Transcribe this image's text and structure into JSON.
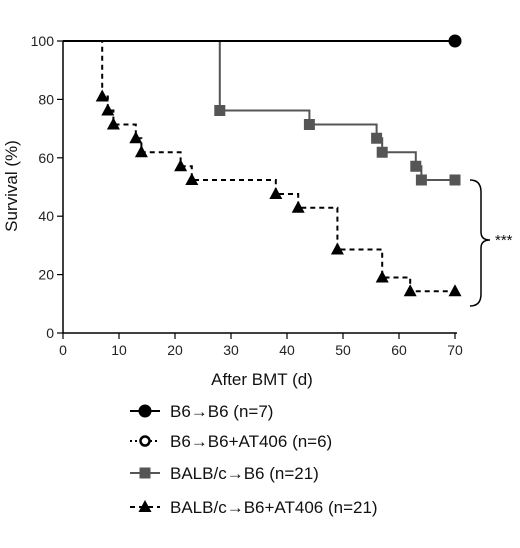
{
  "chart_data": {
    "type": "line",
    "subtype": "kaplan-meier-step",
    "xlabel": "After BMT (d)",
    "ylabel": "Survival (%)",
    "xlim": [
      0,
      70
    ],
    "ylim": [
      0,
      100
    ],
    "xticks": [
      "0",
      "10",
      "20",
      "30",
      "40",
      "50",
      "60",
      "70"
    ],
    "yticks": [
      "0",
      "20",
      "40",
      "60",
      "80",
      "100"
    ],
    "grid": false,
    "legend_position": "bottom",
    "significance": "***",
    "series": [
      {
        "name": "B6→B6 (n=7)",
        "marker": "filled-circle",
        "line": "solid",
        "color": "#000000",
        "steps": [
          [
            0,
            100
          ],
          [
            70,
            100
          ]
        ],
        "markers": [
          [
            70,
            100
          ]
        ]
      },
      {
        "name": "B6→B6+AT406 (n=6)",
        "marker": "open-circle",
        "line": "dotted",
        "color": "#000000",
        "steps": [
          [
            0,
            100
          ],
          [
            70,
            100
          ]
        ],
        "markers": []
      },
      {
        "name": "BALB/c→B6 (n=21)",
        "marker": "square",
        "line": "solid",
        "color": "#555555",
        "steps": [
          [
            0,
            100
          ],
          [
            28,
            76.2
          ],
          [
            44,
            71.4
          ],
          [
            56,
            66.7
          ],
          [
            57,
            61.9
          ],
          [
            63,
            57.1
          ],
          [
            64,
            52.4
          ],
          [
            70,
            52.4
          ]
        ],
        "markers": [
          [
            28,
            76.2
          ],
          [
            44,
            71.4
          ],
          [
            56,
            66.7
          ],
          [
            57,
            61.9
          ],
          [
            63,
            57.1
          ],
          [
            64,
            52.4
          ],
          [
            70,
            52.4
          ]
        ]
      },
      {
        "name": "BALB/c→B6+AT406 (n=21)",
        "marker": "triangle",
        "line": "dashed",
        "color": "#000000",
        "steps": [
          [
            0,
            100
          ],
          [
            7,
            81
          ],
          [
            8,
            76.2
          ],
          [
            9,
            71.4
          ],
          [
            13,
            66.7
          ],
          [
            14,
            61.9
          ],
          [
            21,
            57.1
          ],
          [
            23,
            52.4
          ],
          [
            38,
            47.6
          ],
          [
            42,
            42.9
          ],
          [
            49,
            28.6
          ],
          [
            57,
            19
          ],
          [
            62,
            14.3
          ],
          [
            70,
            14.3
          ]
        ],
        "markers": [
          [
            7,
            81
          ],
          [
            8,
            76.2
          ],
          [
            9,
            71.4
          ],
          [
            13,
            66.7
          ],
          [
            14,
            61.9
          ],
          [
            21,
            57.1
          ],
          [
            23,
            52.4
          ],
          [
            38,
            47.6
          ],
          [
            42,
            42.9
          ],
          [
            49,
            28.6
          ],
          [
            57,
            19
          ],
          [
            62,
            14.3
          ],
          [
            70,
            14.3
          ]
        ]
      }
    ]
  }
}
